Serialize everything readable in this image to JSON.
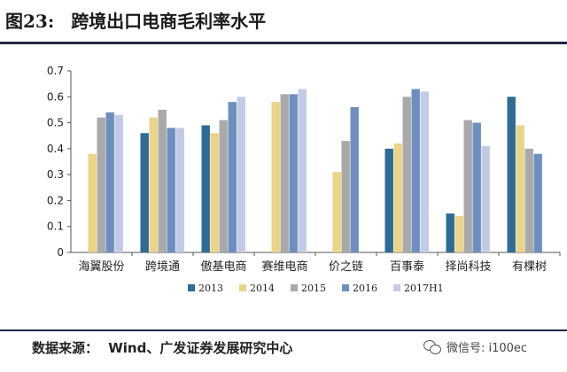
{
  "header": {
    "figure_number": "图23:",
    "title": "跨境出口电商毛利率水平"
  },
  "source": {
    "label": "数据来源：",
    "text": "Wind、广发证券发展研究中心"
  },
  "watermark": {
    "text": "微信号: i100ec",
    "icon": "wechat-icon"
  },
  "colors": {
    "2013": "#2e6b95",
    "2014": "#e9d488",
    "2015": "#a9a9a9",
    "2016": "#6e8fbe",
    "2017H1": "#c2cbe6"
  },
  "chart_data": {
    "type": "bar",
    "title": "",
    "xlabel": "",
    "ylabel": "",
    "ylim": [
      0,
      0.7
    ],
    "yticks": [
      "0",
      "0.1",
      "0.2",
      "0.3",
      "0.4",
      "0.5",
      "0.6",
      "0.7"
    ],
    "grid": false,
    "legend_position": "bottom",
    "categories": [
      "海翼股份",
      "跨境通",
      "傲基电商",
      "赛维电商",
      "价之链",
      "百事泰",
      "择尚科技",
      "有棵树"
    ],
    "series": [
      {
        "name": "2013",
        "values": [
          null,
          0.46,
          0.49,
          null,
          null,
          0.4,
          0.15,
          0.6
        ]
      },
      {
        "name": "2014",
        "values": [
          0.38,
          0.52,
          0.46,
          0.58,
          0.31,
          0.42,
          0.14,
          0.49
        ]
      },
      {
        "name": "2015",
        "values": [
          0.52,
          0.55,
          0.51,
          0.61,
          0.43,
          0.6,
          0.51,
          0.4
        ]
      },
      {
        "name": "2016",
        "values": [
          0.54,
          0.48,
          0.58,
          0.61,
          0.56,
          0.63,
          0.5,
          0.38
        ]
      },
      {
        "name": "2017H1",
        "values": [
          0.53,
          0.48,
          0.6,
          0.63,
          null,
          0.62,
          0.41,
          null
        ]
      }
    ]
  }
}
